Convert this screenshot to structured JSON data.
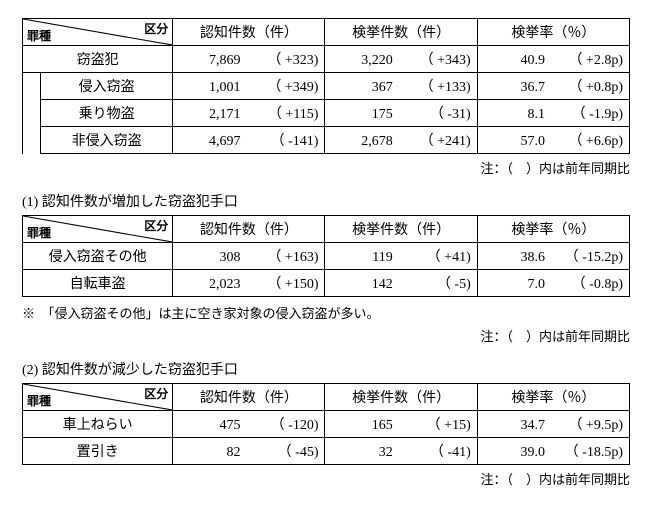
{
  "headers": {
    "diag_top": "区分",
    "diag_bottom": "罪種",
    "col1": "認知件数（件）",
    "col2": "検挙件数（件）",
    "col3": "検挙率（％）"
  },
  "note_paren": "注：（　）内は前年同期比",
  "table1": {
    "rows": [
      {
        "cat": "窃盗犯",
        "indent": false,
        "c1": "7,869",
        "d1": "（  +323)",
        "c2": "3,220",
        "d2": "（  +343)",
        "c3": "40.9",
        "d3": "（   +2.8p)"
      },
      {
        "cat": "侵入窃盗",
        "indent": true,
        "c1": "1,001",
        "d1": "（  +349)",
        "c2": "367",
        "d2": "（  +133)",
        "c3": "36.7",
        "d3": "（   +0.8p)"
      },
      {
        "cat": "乗り物盗",
        "indent": true,
        "c1": "2,171",
        "d1": "（  +115)",
        "c2": "175",
        "d2": "（   -31)",
        "c3": "8.1",
        "d3": "（   -1.9p)"
      },
      {
        "cat": "非侵入窃盗",
        "indent": true,
        "c1": "4,697",
        "d1": "（  -141)",
        "c2": "2,678",
        "d2": "（  +241)",
        "c3": "57.0",
        "d3": "（   +6.6p)"
      }
    ]
  },
  "section1_title": "(1) 認知件数が増加した窃盗犯手口",
  "table2": {
    "rows": [
      {
        "cat": "侵入窃盗その他",
        "c1": "308",
        "d1": "（  +163)",
        "c2": "119",
        "d2": "（   +41)",
        "c3": "38.6",
        "d3": "（  -15.2p)"
      },
      {
        "cat": "自転車盗",
        "c1": "2,023",
        "d1": "（  +150)",
        "c2": "142",
        "d2": "（    -5)",
        "c3": "7.0",
        "d3": "（   -0.8p)"
      }
    ]
  },
  "footnote1": "※　「侵入窃盗その他」は主に空き家対象の侵入窃盗が多い。",
  "section2_title": "(2) 認知件数が減少した窃盗犯手口",
  "table3": {
    "rows": [
      {
        "cat": "車上ねらい",
        "c1": "475",
        "d1": "（  -120)",
        "c2": "165",
        "d2": "（   +15)",
        "c3": "34.7",
        "d3": "（   +9.5p)"
      },
      {
        "cat": "置引き",
        "c1": "82",
        "d1": "（   -45)",
        "c2": "32",
        "d2": "（   -41)",
        "c3": "39.0",
        "d3": "（  -18.5p)"
      }
    ]
  }
}
